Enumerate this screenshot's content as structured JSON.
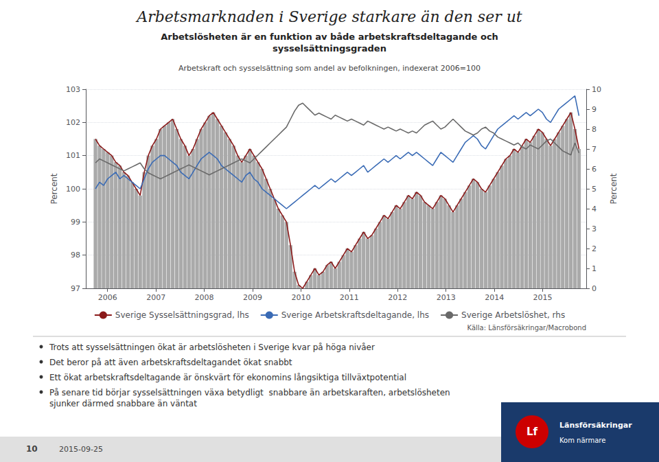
{
  "chart_data": {
    "type": "line",
    "title": "Arbetsmarknaden i Sverige starkare än den ser ut",
    "subtitle": "Arbetslösheten är en funktion av både arbetskraftsdeltagande och\nsysselsättningsgraden",
    "annotations": [
      "Arbetskraft och sysselsättning som andel av befolkningen, indexerat 2006=100",
      "Källa: Länsförsäkringar/Macrobond",
      "Trots att sysselsättningen ökat är arbetslösheten i Sverige kvar på höga nivåer",
      "Det beror på att även arbetskraftsdeltagandet ökat snabbt",
      "Ett ökat arbetskraftsdeltagande är önskvärt för ekonomins långsiktiga tillväxtpotential",
      "På senare tid börjar sysselsättningen växa betydligt  snabbare än arbetskaraften, arbetslösheten sjunker därmed snabbare än väntat",
      "10",
      "2015-09-25",
      "Lf",
      "Länsförsäkringar",
      "Kom närmare"
    ],
    "x": [
      2005.75,
      2005.834,
      2005.9181,
      2006.0021,
      2006.0861,
      2006.1702,
      2006.2542,
      2006.3382,
      2006.4223,
      2006.5063,
      2006.5903,
      2006.6744,
      2006.7584,
      2006.8424,
      2006.9265,
      2007.0105,
      2007.0945,
      2007.1786,
      2007.2626,
      2007.3466,
      2007.4307,
      2007.5147,
      2007.5987,
      2007.6828,
      2007.7668,
      2007.8508,
      2007.9349,
      2008.0189,
      2008.1029,
      2008.187,
      2008.271,
      2008.355,
      2008.4391,
      2008.5231,
      2008.6071,
      2008.6912,
      2008.7752,
      2008.8592,
      2008.9433,
      2009.0273,
      2009.1113,
      2009.1954,
      2009.2794,
      2009.3634,
      2009.4475,
      2009.5315,
      2009.6155,
      2009.6996,
      2009.7836,
      2009.8676,
      2009.9517,
      2010.0357,
      2010.1197,
      2010.2038,
      2010.2878,
      2010.3718,
      2010.4559,
      2010.5399,
      2010.6239,
      2010.708,
      2010.792,
      2010.8761,
      2010.9601,
      2011.0441,
      2011.1282,
      2011.2122,
      2011.2962,
      2011.3803,
      2011.4643,
      2011.5483,
      2011.6324,
      2011.7164,
      2011.8004,
      2011.8845,
      2011.9685,
      2012.0525,
      2012.1366,
      2012.2206,
      2012.3046,
      2012.3887,
      2012.4727,
      2012.5567,
      2012.6408,
      2012.7248,
      2012.8088,
      2012.8929,
      2012.9769,
      2013.0609,
      2013.145,
      2013.229,
      2013.313,
      2013.3971,
      2013.4811,
      2013.5651,
      2013.6492,
      2013.7332,
      2013.8172,
      2013.9013,
      2013.9853,
      2014.0693,
      2014.1534,
      2014.2374,
      2014.3214,
      2014.4055,
      2014.4895,
      2014.5735,
      2014.6576,
      2014.7416,
      2014.8256,
      2014.9097,
      2014.9937,
      2015.0777,
      2015.1618,
      2015.2458,
      2015.3298,
      2015.4139,
      2015.4979,
      2015.5819,
      2015.666,
      2015.75
    ],
    "xlim": [
      2005.55,
      2015.9
    ],
    "xticks": [
      2006,
      2007,
      2008,
      2009,
      2010,
      2011,
      2012,
      2013,
      2014,
      2015
    ],
    "ylabel": "Percent",
    "ylim": [
      97,
      103
    ],
    "yticks": [
      97,
      98,
      99,
      100,
      101,
      102,
      103
    ],
    "y2label": "Percent",
    "y2lim": [
      0,
      10
    ],
    "y2ticks": [
      0,
      1,
      2,
      3,
      4,
      5,
      6,
      7,
      8,
      9,
      10
    ],
    "grid": true,
    "legend": "bottom",
    "series": [
      {
        "type": "bar",
        "color": "#AAAAAA",
        "values": [
          101.5,
          101.3,
          101.2,
          101.1,
          101.0,
          100.8,
          100.7,
          100.5,
          100.4,
          100.2,
          100.0,
          99.8,
          100.5,
          101.0,
          101.3,
          101.5,
          101.8,
          101.9,
          102.0,
          102.1,
          101.8,
          101.5,
          101.3,
          101.0,
          101.2,
          101.5,
          101.8,
          102.0,
          102.2,
          102.3,
          102.1,
          101.9,
          101.7,
          101.5,
          101.3,
          101.0,
          100.8,
          101.0,
          101.2,
          101.0,
          100.8,
          100.6,
          100.3,
          100.0,
          99.7,
          99.4,
          99.2,
          99.0,
          98.3,
          97.5,
          97.1,
          97.0,
          97.2,
          97.4,
          97.6,
          97.4,
          97.5,
          97.7,
          97.8,
          97.6,
          97.8,
          98.0,
          98.2,
          98.1,
          98.3,
          98.5,
          98.7,
          98.5,
          98.6,
          98.8,
          99.0,
          99.2,
          99.1,
          99.3,
          99.5,
          99.4,
          99.6,
          99.8,
          99.7,
          99.9,
          99.8,
          99.6,
          99.5,
          99.4,
          99.6,
          99.8,
          99.7,
          99.5,
          99.3,
          99.5,
          99.7,
          99.9,
          100.1,
          100.3,
          100.2,
          100.0,
          99.9,
          100.1,
          100.3,
          100.5,
          100.7,
          100.9,
          101.0,
          101.2,
          101.1,
          101.3,
          101.5,
          101.4,
          101.6,
          101.8,
          101.7,
          101.5,
          101.3,
          101.5,
          101.7,
          101.9,
          102.1,
          102.3,
          101.8,
          101.2
        ]
      },
      {
        "name": "Sverige Sysselsättningsgrad, lhs",
        "type": "line",
        "color": "#8B1A1A",
        "values": [
          101.5,
          101.3,
          101.2,
          101.1,
          101.0,
          100.8,
          100.7,
          100.5,
          100.4,
          100.2,
          100.0,
          99.8,
          100.5,
          101.0,
          101.3,
          101.5,
          101.8,
          101.9,
          102.0,
          102.1,
          101.8,
          101.5,
          101.3,
          101.0,
          101.2,
          101.5,
          101.8,
          102.0,
          102.2,
          102.3,
          102.1,
          101.9,
          101.7,
          101.5,
          101.3,
          101.0,
          100.8,
          101.0,
          101.2,
          101.0,
          100.8,
          100.6,
          100.3,
          100.0,
          99.7,
          99.4,
          99.2,
          99.0,
          98.3,
          97.5,
          97.1,
          97.0,
          97.2,
          97.4,
          97.6,
          97.4,
          97.5,
          97.7,
          97.8,
          97.6,
          97.8,
          98.0,
          98.2,
          98.1,
          98.3,
          98.5,
          98.7,
          98.5,
          98.6,
          98.8,
          99.0,
          99.2,
          99.1,
          99.3,
          99.5,
          99.4,
          99.6,
          99.8,
          99.7,
          99.9,
          99.8,
          99.6,
          99.5,
          99.4,
          99.6,
          99.8,
          99.7,
          99.5,
          99.3,
          99.5,
          99.7,
          99.9,
          100.1,
          100.3,
          100.2,
          100.0,
          99.9,
          100.1,
          100.3,
          100.5,
          100.7,
          100.9,
          101.0,
          101.2,
          101.1,
          101.3,
          101.5,
          101.4,
          101.6,
          101.8,
          101.7,
          101.5,
          101.3,
          101.5,
          101.7,
          101.9,
          102.1,
          102.3,
          101.8,
          101.2
        ]
      },
      {
        "name": "Sverige Arbetskraftsdeltagande, lhs",
        "type": "line",
        "color": "#3A6BB5",
        "values": [
          100.0,
          100.2,
          100.1,
          100.3,
          100.4,
          100.5,
          100.3,
          100.4,
          100.3,
          100.2,
          100.1,
          100.0,
          100.3,
          100.6,
          100.8,
          100.9,
          101.0,
          101.0,
          100.9,
          100.8,
          100.7,
          100.5,
          100.4,
          100.3,
          100.5,
          100.7,
          100.9,
          101.0,
          101.1,
          101.0,
          100.9,
          100.7,
          100.6,
          100.5,
          100.4,
          100.3,
          100.2,
          100.4,
          100.5,
          100.3,
          100.2,
          100.0,
          99.9,
          99.8,
          99.7,
          99.6,
          99.5,
          99.4,
          99.5,
          99.6,
          99.7,
          99.8,
          99.9,
          100.0,
          100.1,
          100.0,
          100.1,
          100.2,
          100.3,
          100.2,
          100.3,
          100.4,
          100.5,
          100.4,
          100.5,
          100.6,
          100.7,
          100.5,
          100.6,
          100.7,
          100.8,
          100.9,
          100.8,
          100.9,
          101.0,
          100.9,
          101.0,
          101.1,
          101.0,
          101.1,
          101.0,
          100.9,
          100.8,
          100.7,
          100.9,
          101.1,
          101.0,
          100.9,
          100.8,
          101.0,
          101.2,
          101.4,
          101.5,
          101.6,
          101.5,
          101.3,
          101.2,
          101.4,
          101.6,
          101.8,
          101.9,
          102.0,
          102.1,
          102.2,
          102.1,
          102.2,
          102.3,
          102.2,
          102.3,
          102.4,
          102.3,
          102.1,
          102.0,
          102.2,
          102.4,
          102.5,
          102.6,
          102.7,
          102.8,
          102.2
        ]
      },
      {
        "name": "Sverige Arbetslöshet, rhs",
        "type": "line",
        "color": "#696969",
        "axis": "y2",
        "values": [
          6.3,
          6.5,
          6.4,
          6.3,
          6.2,
          6.1,
          6.0,
          5.9,
          6.0,
          6.1,
          6.2,
          6.3,
          6.0,
          5.8,
          5.7,
          5.6,
          5.5,
          5.6,
          5.7,
          5.8,
          5.9,
          6.0,
          6.1,
          6.2,
          6.1,
          6.0,
          5.9,
          5.8,
          5.7,
          5.8,
          5.9,
          6.0,
          6.1,
          6.2,
          6.3,
          6.4,
          6.5,
          6.4,
          6.3,
          6.5,
          6.7,
          6.9,
          7.1,
          7.3,
          7.5,
          7.7,
          7.9,
          8.1,
          8.5,
          8.9,
          9.2,
          9.3,
          9.1,
          8.9,
          8.7,
          8.8,
          8.7,
          8.6,
          8.5,
          8.7,
          8.6,
          8.5,
          8.4,
          8.5,
          8.4,
          8.3,
          8.2,
          8.4,
          8.3,
          8.2,
          8.1,
          8.0,
          8.1,
          8.0,
          7.9,
          8.0,
          7.9,
          7.8,
          7.9,
          7.8,
          8.0,
          8.2,
          8.3,
          8.4,
          8.2,
          8.0,
          8.1,
          8.3,
          8.5,
          8.3,
          8.1,
          7.9,
          7.8,
          7.7,
          7.8,
          8.0,
          8.1,
          7.9,
          7.8,
          7.6,
          7.5,
          7.4,
          7.3,
          7.2,
          7.3,
          7.1,
          7.0,
          7.2,
          7.1,
          7.0,
          7.2,
          7.4,
          7.5,
          7.3,
          7.1,
          6.9,
          6.8,
          6.7,
          7.3,
          6.8
        ]
      }
    ]
  }
}
